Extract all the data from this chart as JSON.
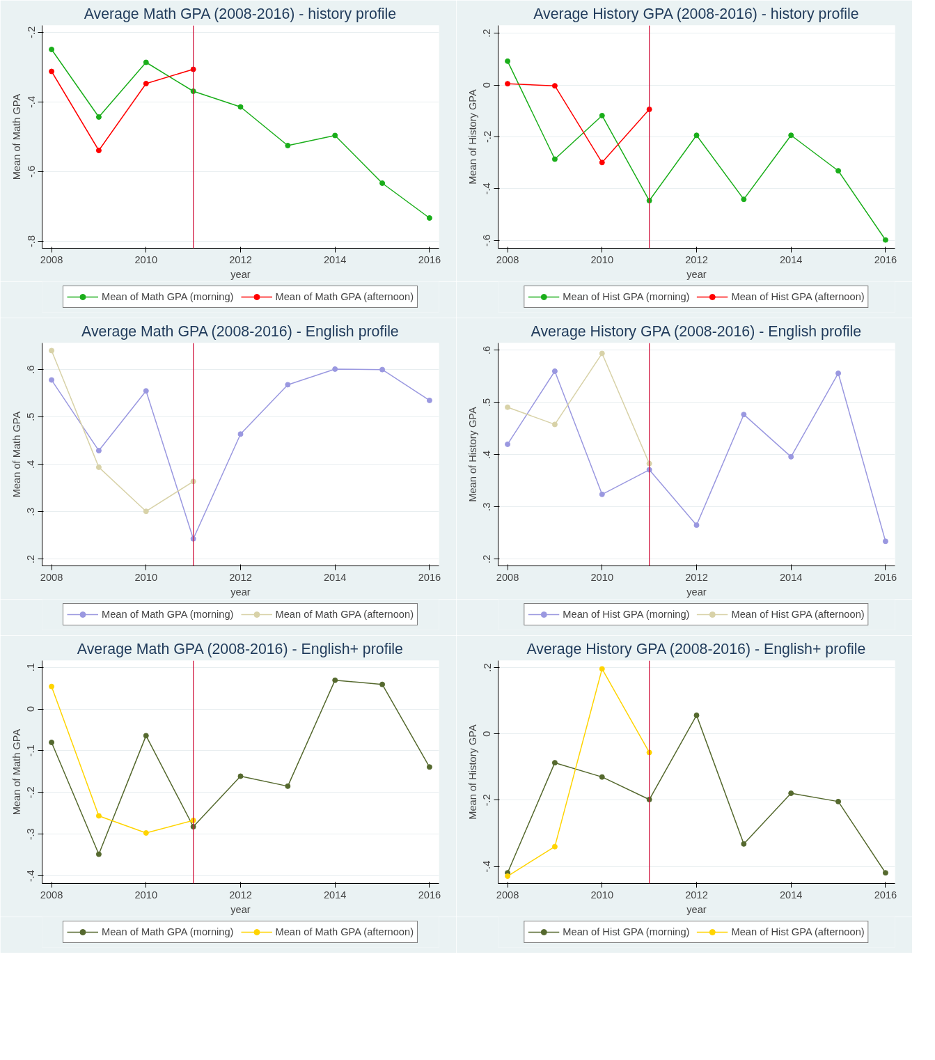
{
  "chart_data": [
    {
      "type": "line",
      "title": "Average Math GPA (2008-2016) - history profile",
      "xlabel": "year",
      "ylabel": "Mean of Math GPA",
      "xlim": [
        2007.8,
        2016.2
      ],
      "ylim": [
        -0.82,
        -0.18
      ],
      "xticks": [
        2008,
        2010,
        2012,
        2014,
        2016
      ],
      "yticks": [
        {
          "value": -0.8,
          "label": "-.8"
        },
        {
          "value": -0.6,
          "label": "-.6"
        },
        {
          "value": -0.4,
          "label": "-.4"
        },
        {
          "value": -0.2,
          "label": "-.2"
        }
      ],
      "grid": "y",
      "legend": "bottom",
      "marker": "circle",
      "ref_lines": [
        {
          "axis": "x",
          "value": 2011,
          "color": "#d0103a"
        }
      ],
      "series": [
        {
          "name": "Mean of Math GPA (morning)",
          "color": "#1aae1a",
          "x": [
            2008,
            2009,
            2010,
            2011,
            2012,
            2013,
            2014,
            2015,
            2016
          ],
          "values": [
            -0.249,
            -0.443,
            -0.286,
            -0.369,
            -0.414,
            -0.525,
            -0.496,
            -0.633,
            -0.733
          ]
        },
        {
          "name": "Mean of Math GPA (afternoon)",
          "color": "#ff0000",
          "x": [
            2008,
            2009,
            2010,
            2011
          ],
          "values": [
            -0.312,
            -0.539,
            -0.347,
            -0.306
          ]
        }
      ]
    },
    {
      "type": "line",
      "title": "Average History GPA (2008-2016) - history profile",
      "xlabel": "year",
      "ylabel": "Mean of History GPA",
      "xlim": [
        2007.8,
        2016.2
      ],
      "ylim": [
        -0.63,
        0.23
      ],
      "xticks": [
        2008,
        2010,
        2012,
        2014,
        2016
      ],
      "yticks": [
        {
          "value": -0.6,
          "label": "-.6"
        },
        {
          "value": -0.4,
          "label": "-.4"
        },
        {
          "value": -0.2,
          "label": "-.2"
        },
        0,
        {
          "value": 0.2,
          "label": ".2"
        }
      ],
      "grid": "y",
      "legend": "bottom",
      "marker": "circle",
      "ref_lines": [
        {
          "axis": "x",
          "value": 2011,
          "color": "#d0103a"
        }
      ],
      "series": [
        {
          "name": "Mean of Hist GPA (morning)",
          "color": "#1aae1a",
          "x": [
            2008,
            2009,
            2010,
            2011,
            2012,
            2013,
            2014,
            2015,
            2016
          ],
          "values": [
            0.092,
            -0.286,
            -0.118,
            -0.446,
            -0.194,
            -0.441,
            -0.194,
            -0.331,
            -0.598
          ]
        },
        {
          "name": "Mean of Hist GPA (afternoon)",
          "color": "#ff0000",
          "x": [
            2008,
            2009,
            2010,
            2011
          ],
          "values": [
            0.005,
            -0.003,
            -0.299,
            -0.094
          ]
        }
      ]
    },
    {
      "type": "line",
      "title": "Average Math GPA (2008-2016) - English profile",
      "xlabel": "year",
      "ylabel": "Mean of Math GPA",
      "xlim": [
        2007.8,
        2016.2
      ],
      "ylim": [
        0.186,
        0.656
      ],
      "xticks": [
        2008,
        2010,
        2012,
        2014,
        2016
      ],
      "yticks": [
        {
          "value": 0.2,
          "label": ".2"
        },
        {
          "value": 0.3,
          "label": ".3"
        },
        {
          "value": 0.4,
          "label": ".4"
        },
        {
          "value": 0.5,
          "label": ".5"
        },
        {
          "value": 0.6,
          "label": ".6"
        }
      ],
      "grid": "y",
      "legend": "bottom",
      "marker": "circle",
      "ref_lines": [
        {
          "axis": "x",
          "value": 2011,
          "color": "#d0103a"
        }
      ],
      "series": [
        {
          "name": "Mean of Math GPA (morning)",
          "color": "#9a98e0",
          "x": [
            2008,
            2009,
            2010,
            2011,
            2012,
            2013,
            2014,
            2015,
            2016
          ],
          "values": [
            0.578,
            0.429,
            0.555,
            0.243,
            0.464,
            0.568,
            0.601,
            0.6,
            0.535
          ]
        },
        {
          "name": "Mean of Math GPA (afternoon)",
          "color": "#d8d2a8",
          "x": [
            2008,
            2009,
            2010,
            2011
          ],
          "values": [
            0.64,
            0.394,
            0.301,
            0.364
          ]
        }
      ]
    },
    {
      "type": "line",
      "title": "Average History GPA (2008-2016) - English profile",
      "xlabel": "year",
      "ylabel": "Mean of History GPA",
      "xlim": [
        2007.8,
        2016.2
      ],
      "ylim": [
        0.187,
        0.614
      ],
      "xticks": [
        2008,
        2010,
        2012,
        2014,
        2016
      ],
      "yticks": [
        {
          "value": 0.2,
          "label": ".2"
        },
        {
          "value": 0.3,
          "label": ".3"
        },
        {
          "value": 0.4,
          "label": ".4"
        },
        {
          "value": 0.5,
          "label": ".5"
        },
        {
          "value": 0.6,
          "label": ".6"
        }
      ],
      "grid": "y",
      "legend": "bottom",
      "marker": "circle",
      "ref_lines": [
        {
          "axis": "x",
          "value": 2011,
          "color": "#d0103a"
        }
      ],
      "series": [
        {
          "name": "Mean of Hist GPA (morning)",
          "color": "#9a98e0",
          "x": [
            2008,
            2009,
            2010,
            2011,
            2012,
            2013,
            2014,
            2015,
            2016
          ],
          "values": [
            0.42,
            0.56,
            0.324,
            0.371,
            0.265,
            0.477,
            0.396,
            0.556,
            0.234
          ]
        },
        {
          "name": "Mean of Hist GPA (afternoon)",
          "color": "#d8d2a8",
          "x": [
            2008,
            2009,
            2010,
            2011
          ],
          "values": [
            0.491,
            0.458,
            0.594,
            0.383
          ]
        }
      ]
    },
    {
      "type": "line",
      "title": "Average Math GPA (2008-2016) - English+ profile",
      "xlabel": "year",
      "ylabel": "Mean of Math GPA",
      "xlim": [
        2007.8,
        2016.2
      ],
      "ylim": [
        -0.418,
        0.116
      ],
      "xticks": [
        2008,
        2010,
        2012,
        2014,
        2016
      ],
      "yticks": [
        {
          "value": -0.4,
          "label": "-.4"
        },
        {
          "value": -0.3,
          "label": "-.3"
        },
        {
          "value": -0.2,
          "label": "-.2"
        },
        {
          "value": -0.1,
          "label": "-.1"
        },
        0,
        {
          "value": 0.1,
          "label": ".1"
        }
      ],
      "grid": "y",
      "legend": "bottom",
      "marker": "circle",
      "ref_lines": [
        {
          "axis": "x",
          "value": 2011,
          "color": "#d0103a"
        }
      ],
      "series": [
        {
          "name": "Mean of Math GPA (morning)",
          "color": "#55692e",
          "x": [
            2008,
            2009,
            2010,
            2011,
            2012,
            2013,
            2014,
            2015,
            2016
          ],
          "values": [
            -0.08,
            -0.348,
            -0.064,
            -0.282,
            -0.161,
            -0.185,
            0.069,
            0.059,
            -0.139
          ]
        },
        {
          "name": "Mean of Math GPA (afternoon)",
          "color": "#ffd400",
          "x": [
            2008,
            2009,
            2010,
            2011
          ],
          "values": [
            0.054,
            -0.256,
            -0.297,
            -0.267
          ]
        }
      ]
    },
    {
      "type": "line",
      "title": "Average History GPA (2008-2016) - English+ profile",
      "xlabel": "year",
      "ylabel": "Mean of History GPA",
      "xlim": [
        2007.8,
        2016.2
      ],
      "ylim": [
        -0.451,
        0.221
      ],
      "xticks": [
        2008,
        2010,
        2012,
        2014,
        2016
      ],
      "yticks": [
        {
          "value": -0.4,
          "label": "-.4"
        },
        {
          "value": -0.2,
          "label": "-.2"
        },
        0,
        {
          "value": 0.2,
          "label": ".2"
        }
      ],
      "grid": "y",
      "legend": "bottom",
      "marker": "circle",
      "ref_lines": [
        {
          "axis": "x",
          "value": 2011,
          "color": "#d0103a"
        }
      ],
      "series": [
        {
          "name": "Mean of Hist GPA (morning)",
          "color": "#55692e",
          "x": [
            2008,
            2009,
            2010,
            2011,
            2012,
            2013,
            2014,
            2015,
            2016
          ],
          "values": [
            -0.419,
            -0.087,
            -0.13,
            -0.198,
            0.056,
            -0.332,
            -0.179,
            -0.204,
            -0.419
          ]
        },
        {
          "name": "Mean of Hist GPA (afternoon)",
          "color": "#ffd400",
          "x": [
            2008,
            2009,
            2010,
            2011
          ],
          "values": [
            -0.429,
            -0.34,
            0.196,
            -0.056
          ]
        }
      ]
    }
  ]
}
